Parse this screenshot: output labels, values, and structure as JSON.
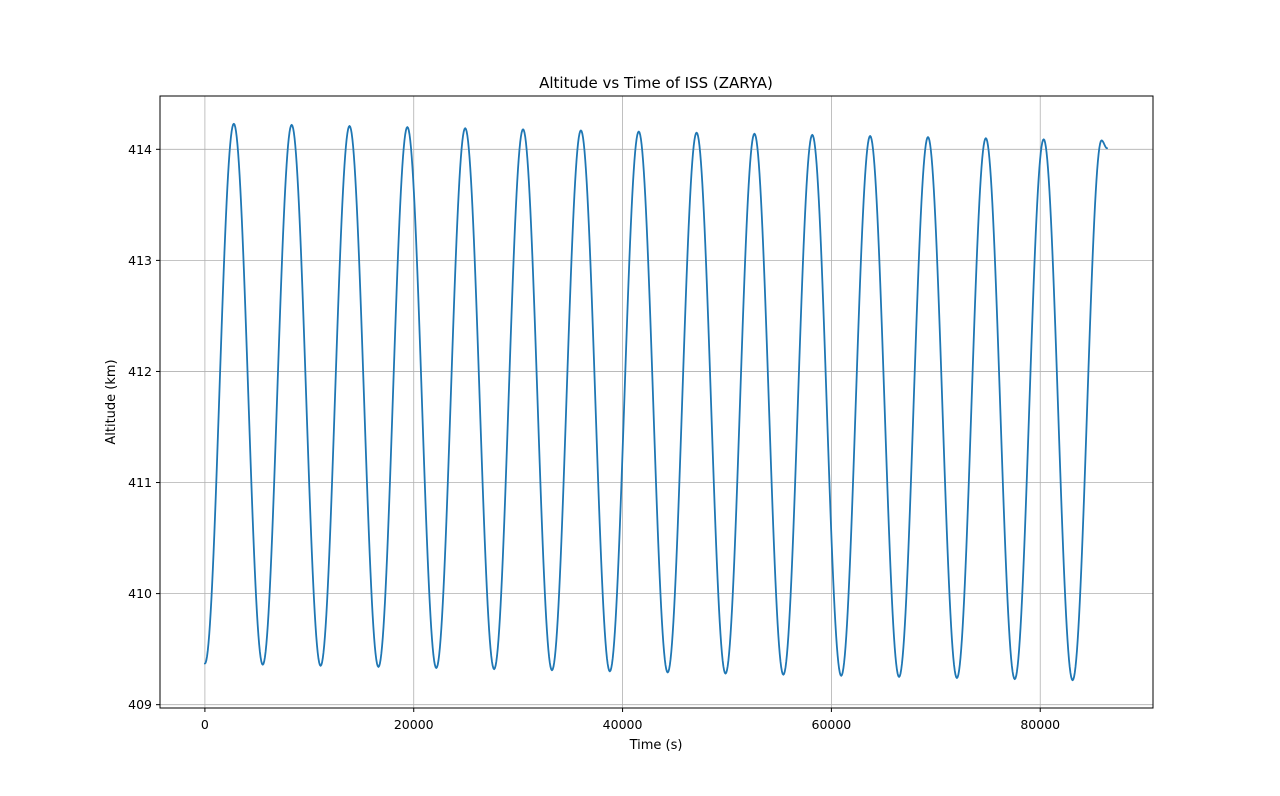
{
  "chart_data": {
    "type": "line",
    "title": "Altitude vs Time of ISS (ZARYA)",
    "xlabel": "Time (s)",
    "ylabel": "Altitude (km)",
    "xlim": [
      -4300,
      90800
    ],
    "ylim": [
      408.97,
      414.48
    ],
    "xticks": [
      0,
      20000,
      40000,
      60000,
      80000
    ],
    "xtick_labels": [
      "0",
      "20000",
      "40000",
      "60000",
      "80000"
    ],
    "yticks": [
      409,
      410,
      411,
      412,
      413,
      414
    ],
    "ytick_labels": [
      "409",
      "410",
      "411",
      "412",
      "413",
      "414"
    ],
    "grid": true,
    "legend": "none",
    "line_color": "#1f77b4",
    "series": [
      {
        "x": [
          0,
          2770,
          5540,
          8310,
          11080,
          13850,
          16620,
          19390,
          22160,
          24930,
          27700,
          30470,
          33240,
          36010,
          38780,
          41550,
          44320,
          47090,
          49860,
          52630,
          55400,
          58170,
          60940,
          63710,
          66480,
          69250,
          72020,
          74790,
          77560,
          80330,
          83100,
          85870,
          86400
        ],
        "y": [
          409.37,
          414.23,
          409.36,
          414.22,
          409.35,
          414.21,
          409.34,
          414.2,
          409.33,
          414.19,
          409.32,
          414.18,
          409.31,
          414.17,
          409.3,
          414.16,
          409.29,
          414.15,
          409.28,
          414.14,
          409.27,
          414.13,
          409.26,
          414.12,
          409.25,
          414.11,
          409.24,
          414.1,
          409.23,
          414.09,
          409.22,
          414.08,
          414.01
        ]
      }
    ]
  }
}
